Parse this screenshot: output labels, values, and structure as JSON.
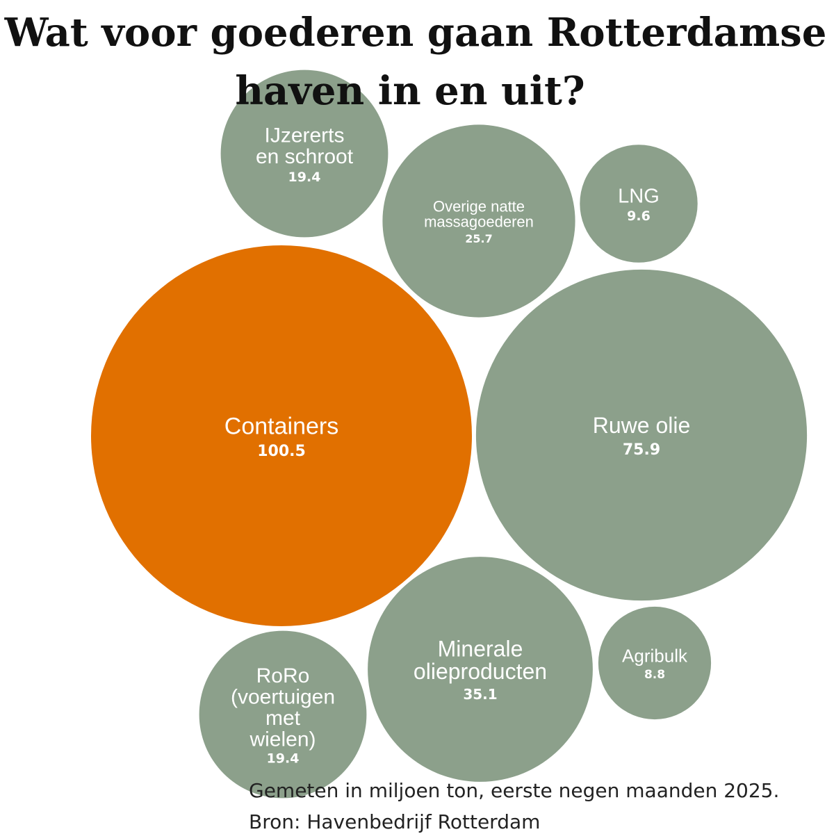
{
  "chart_data": {
    "type": "bubble",
    "title_lines": [
      "Wat voor goederen gaan Rotterdamse",
      "haven in en uit?"
    ],
    "colors": {
      "highlight": "#e17000",
      "default": "#8ca08b",
      "text": "#ffffff"
    },
    "items": [
      {
        "key": "containers",
        "label_lines": [
          "Containers"
        ],
        "value": 100.5,
        "value_text": "100.5",
        "highlight": true
      },
      {
        "key": "ruwe-olie",
        "label_lines": [
          "Ruwe olie"
        ],
        "value": 75.9,
        "value_text": "75.9",
        "highlight": false
      },
      {
        "key": "minerale-olieproducten",
        "label_lines": [
          "Minerale",
          "olieproducten"
        ],
        "value": 35.1,
        "value_text": "35.1",
        "highlight": false
      },
      {
        "key": "overige-natte-massagoederen",
        "label_lines": [
          "Overige natte",
          "massagoederen"
        ],
        "value": 25.7,
        "value_text": "25.7",
        "highlight": false
      },
      {
        "key": "ijzererts-en-schroot",
        "label_lines": [
          "IJzererts",
          "en schroot"
        ],
        "value": 19.4,
        "value_text": "19.4",
        "highlight": false
      },
      {
        "key": "roro",
        "label_lines": [
          "RoRo",
          "(voertuigen",
          "met",
          "wielen)"
        ],
        "value": 19.4,
        "value_text": "19.4",
        "highlight": false
      },
      {
        "key": "lng",
        "label_lines": [
          "LNG"
        ],
        "value": 9.6,
        "value_text": "9.6",
        "highlight": false
      },
      {
        "key": "agribulk",
        "label_lines": [
          "Agribulk"
        ],
        "value": 8.8,
        "value_text": "8.8",
        "highlight": false
      }
    ],
    "notes": [
      "Gemeten in miljoen ton, eerste negen maanden 2025.",
      "Bron: Havenbedrijf Rotterdam"
    ]
  }
}
